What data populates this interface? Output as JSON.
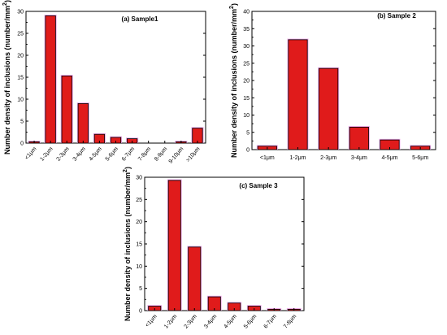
{
  "chart_data": [
    {
      "type": "bar",
      "title": "(a)  Sample1",
      "ylabel": "Number density of inclusions (number/mm",
      "ylabel_sup": "2",
      "ylabel_close": ")",
      "ylim": [
        0,
        30
      ],
      "yticks": [
        0,
        5,
        10,
        15,
        20,
        25,
        30
      ],
      "categories": [
        "<1μm",
        "1-2μm",
        "2-3μm",
        "3-4μm",
        "4-5μm",
        "5-6μm",
        "6-7μm",
        "7-8μm",
        "8-9μm",
        "9-10μm",
        ">10μm"
      ],
      "values": [
        0.3,
        29,
        15.3,
        9,
        2,
        1.3,
        1.0,
        0,
        0,
        0.3,
        3.4
      ],
      "colors": {
        "bar": "#e01b1b",
        "bar_outline": "#000000",
        "glow": "#f0a8e8"
      }
    },
    {
      "type": "bar",
      "title": "(b)  Sample 2",
      "ylabel": "Number density of inclusions (number/mm",
      "ylabel_sup": "2",
      "ylabel_close": ")",
      "ylim": [
        0,
        40
      ],
      "yticks": [
        0,
        5,
        10,
        15,
        20,
        25,
        30,
        35,
        40
      ],
      "categories": [
        "<1μm",
        "1-2μm",
        "2-3μm",
        "3-4μm",
        "4-5μm",
        "5-6μm"
      ],
      "values": [
        1.0,
        31.8,
        23.5,
        6.5,
        2.8,
        1.0
      ],
      "colors": {
        "bar": "#e01b1b",
        "bar_outline": "#000000",
        "glow": "#f0a8e8"
      }
    },
    {
      "type": "bar",
      "title": "(c)  Sample 3",
      "ylabel": "Number density of inclusions (number/mm",
      "ylabel_sup": "2",
      "ylabel_close": ")",
      "ylim": [
        0,
        30
      ],
      "yticks": [
        0,
        5,
        10,
        15,
        20,
        25,
        30
      ],
      "categories": [
        "<1μm",
        "1-2μm",
        "2-3μm",
        "3-4μm",
        "4-5μm",
        "5-6μm",
        "6-7μm",
        "7-8μm"
      ],
      "values": [
        1.0,
        29.3,
        14.3,
        3.1,
        1.7,
        1.0,
        0.3,
        0.3
      ],
      "colors": {
        "bar": "#e01b1b",
        "bar_outline": "#000000",
        "glow": "#f0a8e8"
      }
    }
  ]
}
